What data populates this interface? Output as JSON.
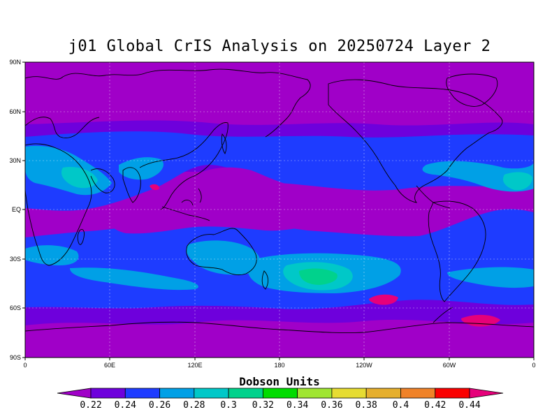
{
  "title": "j01 Global CrIS Analysis on 20250724 Layer 2",
  "lat_labels": [
    "90N",
    "60N",
    "30N",
    "EQ",
    "30S",
    "60S",
    "90S"
  ],
  "lon_labels": [
    "0",
    "60E",
    "120E",
    "180",
    "120W",
    "60W",
    "0"
  ],
  "colorbar": {
    "title": "Dobson Units",
    "labels": [
      "0.22",
      "0.24",
      "0.26",
      "0.28",
      "0.3",
      "0.32",
      "0.34",
      "0.36",
      "0.38",
      "0.4",
      "0.42",
      "0.44"
    ],
    "colors": [
      "#a000c8",
      "#6e00dc",
      "#1e3cff",
      "#00a0e6",
      "#00c8c8",
      "#00d28c",
      "#00dc00",
      "#a0e632",
      "#e6dc32",
      "#e6af2d",
      "#f08228",
      "#fa0000",
      "#e6007a"
    ]
  },
  "map_colors": {
    "purple": "#a000c8",
    "violet": "#6e00dc",
    "blue": "#1e3cff",
    "lightblue": "#00a0e6",
    "cyan": "#00c8c8",
    "green": "#00d28c",
    "pink": "#e6007a"
  }
}
